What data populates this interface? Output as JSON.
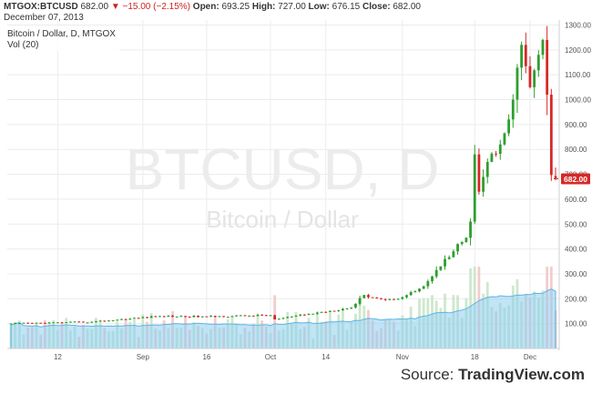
{
  "header": {
    "symbol": "MTGOX:BTCUSD",
    "last": "682.00",
    "change": "▼ −15.00 (−2.15%)",
    "open_label": "Open:",
    "open": "693.25",
    "high_label": "High:",
    "high": "727.00",
    "low_label": "Low:",
    "low": "676.15",
    "close_label": "Close:",
    "close": "682.00",
    "date": "December 07, 2013"
  },
  "legend": {
    "series_name": "Bitcoin / Dollar, D, MTGOX",
    "volume_name": "Vol (20)"
  },
  "watermark": {
    "main": "BTCUSD, D",
    "sub": "Bitcoin / Dollar"
  },
  "source": {
    "prefix": "Source: ",
    "brand": "TradingView.com"
  },
  "last_price_label": "682.00",
  "colors": {
    "up": "#2e9e2e",
    "down": "#d62828",
    "vol_up": "#c8e6c8",
    "vol_down": "#f0c8c8",
    "vol_ma": "#8ecdf0",
    "grid": "#ececec"
  },
  "chart_data": {
    "type": "candlestick",
    "x_ticks": [
      "12",
      "Sep",
      "16",
      "Oct",
      "14",
      "Nov",
      "18",
      "Dec"
    ],
    "y_ticks": [
      100,
      200,
      300,
      400,
      500,
      600,
      700,
      800,
      900,
      1000,
      1100,
      1200,
      1300
    ],
    "y_tick_labels": [
      "100.00",
      "200.00",
      "300.00",
      "400.00",
      "500.00",
      "600.00",
      "700.00",
      "800.00",
      "900.00",
      "1000.00",
      "1100.00",
      "1200.00",
      "1300.00"
    ],
    "ylim": [
      0,
      1320
    ],
    "date_range": [
      "2013-08-01",
      "2013-12-07"
    ],
    "tick_dates": [
      "2013-08-12",
      "2013-09-01",
      "2013-09-16",
      "2013-10-01",
      "2013-10-14",
      "2013-11-01",
      "2013-11-18",
      "2013-12-01"
    ],
    "ohlc_keyframes": [
      {
        "date": "2013-08-01",
        "close": 100
      },
      {
        "date": "2013-08-20",
        "close": 107
      },
      {
        "date": "2013-09-05",
        "close": 130
      },
      {
        "date": "2013-09-16",
        "close": 128
      },
      {
        "date": "2013-10-01",
        "close": 134
      },
      {
        "date": "2013-10-02",
        "close": 117
      },
      {
        "date": "2013-10-20",
        "close": 165
      },
      {
        "date": "2013-10-23",
        "close": 215
      },
      {
        "date": "2013-10-28",
        "close": 195
      },
      {
        "date": "2013-11-01",
        "close": 206
      },
      {
        "date": "2013-11-06",
        "close": 250
      },
      {
        "date": "2013-11-10",
        "close": 330
      },
      {
        "date": "2013-11-14",
        "close": 420
      },
      {
        "date": "2013-11-16",
        "close": 445
      },
      {
        "date": "2013-11-17",
        "close": 510
      },
      {
        "date": "2013-11-18",
        "close": 780
      },
      {
        "date": "2013-11-19",
        "close": 630
      },
      {
        "date": "2013-11-21",
        "close": 750
      },
      {
        "date": "2013-11-24",
        "close": 820
      },
      {
        "date": "2013-11-27",
        "close": 1000
      },
      {
        "date": "2013-11-29",
        "close": 1220
      },
      {
        "date": "2013-12-01",
        "close": 1050
      },
      {
        "date": "2013-12-03",
        "close": 1180
      },
      {
        "date": "2013-12-04",
        "close": 1240
      },
      {
        "date": "2013-12-05",
        "close": 1020
      },
      {
        "date": "2013-12-06",
        "close": 697
      },
      {
        "date": "2013-12-07",
        "open": 693.25,
        "high": 727.0,
        "low": 676.15,
        "close": 682.0
      }
    ],
    "volume_ma_period": 20
  }
}
